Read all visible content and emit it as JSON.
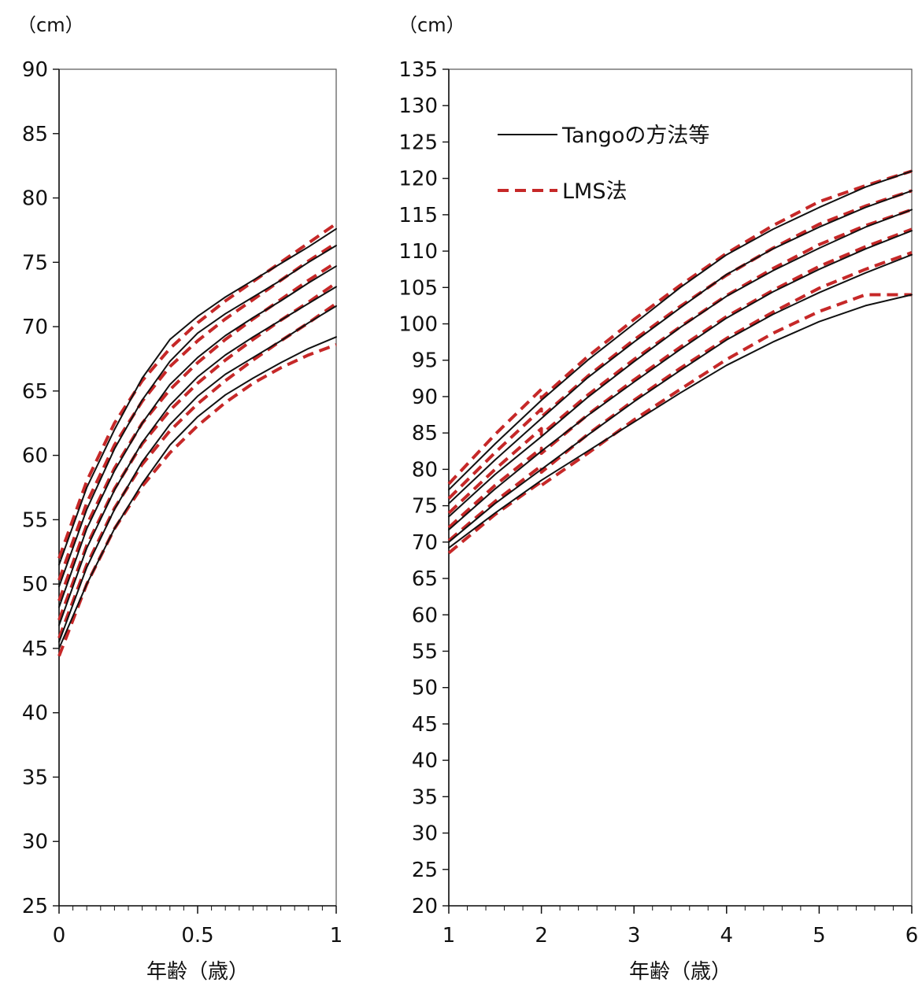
{
  "legend": {
    "solid_label": "Tangoの方法等",
    "dashed_label": "LMS法",
    "solid_color": "#111111",
    "dashed_color": "#c62828"
  },
  "chart_data": [
    {
      "type": "line",
      "panel": "left",
      "unit_label": "（cm）",
      "xlabel": "年齢（歳）",
      "ylabel": "",
      "xlim": [
        0,
        1
      ],
      "ylim": [
        25,
        90
      ],
      "x_ticks": [
        "0",
        "0.5",
        "1"
      ],
      "y_ticks": [
        "25",
        "30",
        "35",
        "40",
        "45",
        "50",
        "55",
        "60",
        "65",
        "70",
        "75",
        "80",
        "85",
        "90"
      ],
      "grid": false,
      "x": [
        0,
        0.1,
        0.2,
        0.3,
        0.4,
        0.5,
        0.6,
        0.7,
        0.8,
        0.9,
        1.0
      ],
      "series": [
        {
          "style": "solid",
          "values": [
            51.5,
            57.5,
            62.0,
            66.0,
            69.0,
            70.8,
            72.3,
            73.6,
            74.9,
            76.2,
            77.6
          ]
        },
        {
          "style": "dashed",
          "values": [
            52.0,
            58.0,
            62.5,
            65.8,
            68.3,
            70.3,
            72.0,
            73.5,
            75.0,
            76.5,
            78.0
          ]
        },
        {
          "style": "solid",
          "values": [
            49.8,
            55.8,
            60.5,
            64.3,
            67.3,
            69.5,
            71.0,
            72.3,
            73.6,
            75.0,
            76.3
          ]
        },
        {
          "style": "dashed",
          "values": [
            50.3,
            56.3,
            60.8,
            64.2,
            66.9,
            68.9,
            70.6,
            72.1,
            73.6,
            75.1,
            76.5
          ]
        },
        {
          "style": "solid",
          "values": [
            48.2,
            54.3,
            58.8,
            62.5,
            65.5,
            67.6,
            69.3,
            70.7,
            72.0,
            73.4,
            74.7
          ]
        },
        {
          "style": "dashed",
          "values": [
            48.7,
            54.6,
            59.0,
            62.5,
            65.1,
            67.2,
            69.0,
            70.6,
            72.1,
            73.6,
            75.0
          ]
        },
        {
          "style": "solid",
          "values": [
            46.8,
            52.8,
            57.3,
            61.0,
            63.9,
            66.1,
            67.8,
            69.2,
            70.5,
            71.8,
            73.1
          ]
        },
        {
          "style": "dashed",
          "values": [
            47.2,
            53.0,
            57.4,
            60.9,
            63.5,
            65.6,
            67.4,
            69.0,
            70.5,
            71.9,
            73.4
          ]
        },
        {
          "style": "solid",
          "values": [
            45.5,
            51.3,
            55.8,
            59.5,
            62.4,
            64.6,
            66.3,
            67.6,
            68.9,
            70.3,
            71.6
          ]
        },
        {
          "style": "dashed",
          "values": [
            45.8,
            51.5,
            55.9,
            59.3,
            61.9,
            64.0,
            65.8,
            67.4,
            68.9,
            70.3,
            71.8
          ]
        },
        {
          "style": "solid",
          "values": [
            45.0,
            50.0,
            54.3,
            57.8,
            60.8,
            63.0,
            64.7,
            66.0,
            67.2,
            68.3,
            69.2
          ]
        },
        {
          "style": "dashed",
          "values": [
            44.4,
            50.0,
            54.3,
            57.6,
            60.2,
            62.3,
            64.1,
            65.6,
            66.8,
            67.8,
            68.6
          ]
        }
      ]
    },
    {
      "type": "line",
      "panel": "right",
      "unit_label": "（cm）",
      "xlabel": "年齢（歳）",
      "ylabel": "",
      "xlim": [
        1,
        6
      ],
      "ylim": [
        20,
        135
      ],
      "x_ticks": [
        "1",
        "2",
        "3",
        "4",
        "5",
        "6"
      ],
      "y_ticks": [
        "20",
        "25",
        "30",
        "35",
        "40",
        "45",
        "50",
        "55",
        "60",
        "65",
        "70",
        "75",
        "80",
        "85",
        "90",
        "95",
        "100",
        "105",
        "110",
        "115",
        "120",
        "125",
        "130",
        "135"
      ],
      "grid": false,
      "x": [
        1,
        1.5,
        2,
        2,
        2.5,
        3,
        3.5,
        4,
        4.5,
        5,
        5.5,
        6
      ],
      "series": [
        {
          "style": "solid",
          "values": [
            77.2,
            83.5,
            89.5,
            89.5,
            95.0,
            100.0,
            105.0,
            109.5,
            113.0,
            116.0,
            118.8,
            121.0
          ]
        },
        {
          "style": "dashed",
          "values": [
            78.0,
            84.8,
            91.0,
            89.8,
            95.5,
            100.6,
            105.3,
            109.7,
            113.5,
            116.8,
            119.0,
            121.0
          ]
        },
        {
          "style": "solid",
          "values": [
            75.3,
            81.3,
            87.0,
            87.0,
            92.6,
            97.5,
            102.2,
            106.8,
            110.3,
            113.3,
            116.0,
            118.3
          ]
        },
        {
          "style": "dashed",
          "values": [
            76.0,
            82.3,
            88.3,
            87.2,
            92.8,
            97.8,
            102.4,
            106.7,
            110.4,
            113.7,
            116.2,
            118.3
          ]
        },
        {
          "style": "solid",
          "values": [
            73.5,
            79.3,
            84.5,
            84.5,
            89.9,
            94.8,
            99.5,
            103.8,
            107.3,
            110.4,
            113.3,
            115.7
          ]
        },
        {
          "style": "dashed",
          "values": [
            74.0,
            80.0,
            85.6,
            84.8,
            90.2,
            95.1,
            99.6,
            103.9,
            107.6,
            110.9,
            113.5,
            115.7
          ]
        },
        {
          "style": "solid",
          "values": [
            71.7,
            77.3,
            82.5,
            82.5,
            87.4,
            92.0,
            96.5,
            100.8,
            104.4,
            107.5,
            110.3,
            112.8
          ]
        },
        {
          "style": "dashed",
          "values": [
            72.0,
            77.8,
            82.9,
            82.2,
            87.5,
            92.3,
            96.8,
            101.0,
            104.6,
            107.9,
            110.6,
            113.0
          ]
        },
        {
          "style": "solid",
          "values": [
            70.0,
            75.3,
            80.0,
            80.0,
            84.7,
            89.3,
            93.6,
            97.8,
            101.3,
            104.3,
            107.0,
            109.5
          ]
        },
        {
          "style": "dashed",
          "values": [
            70.2,
            75.6,
            80.5,
            79.6,
            84.8,
            89.5,
            93.9,
            98.0,
            101.6,
            104.9,
            107.5,
            109.8
          ]
        },
        {
          "style": "solid",
          "values": [
            69.2,
            74.0,
            78.5,
            78.5,
            82.5,
            86.5,
            90.5,
            94.3,
            97.5,
            100.3,
            102.5,
            104.0
          ]
        },
        {
          "style": "dashed",
          "values": [
            68.5,
            73.8,
            78.3,
            77.8,
            82.2,
            86.8,
            91.0,
            95.1,
            98.7,
            101.7,
            104.0,
            104.0
          ]
        }
      ]
    }
  ]
}
